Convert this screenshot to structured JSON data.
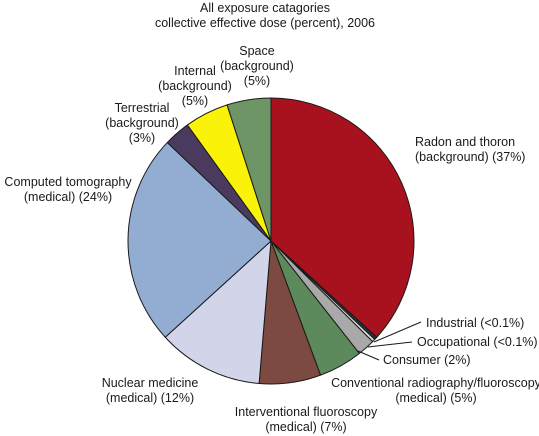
{
  "chart_data": {
    "type": "pie",
    "title": "All exposure catagories",
    "subtitle": "collective effective dose (percent), 2006",
    "unit": "%",
    "slices": [
      {
        "lines": [
          "Radon and thoron",
          "(background) (37%)"
        ],
        "value": 37,
        "color": "#a8121f"
      },
      {
        "lines": [
          "Industrial (<0.1%)"
        ],
        "value": 0.1,
        "color": "#2e2e3a"
      },
      {
        "lines": [
          "Occupational (<0.1%)"
        ],
        "value": 0.1,
        "color": "#e0e0e0"
      },
      {
        "lines": [
          "Consumer (2%)"
        ],
        "value": 2,
        "color": "#a9a9a9"
      },
      {
        "lines": [
          "Conventional radiography/fluoroscopy",
          "(medical) (5%)"
        ],
        "value": 5,
        "color": "#5c8a5c"
      },
      {
        "lines": [
          "Interventional fluoroscopy",
          "(medical) (7%)"
        ],
        "value": 7,
        "color": "#7d4a42"
      },
      {
        "lines": [
          "Nuclear medicine",
          "(medical) (12%)"
        ],
        "value": 12,
        "color": "#d2d4ea"
      },
      {
        "lines": [
          "Computed tomography",
          "(medical) (24%)"
        ],
        "value": 24,
        "color": "#93add2"
      },
      {
        "lines": [
          "Terrestrial",
          "(background)",
          "(3%)"
        ],
        "value": 3,
        "color": "#4a3b5e"
      },
      {
        "lines": [
          "Internal",
          "(background)",
          "(5%)"
        ],
        "value": 5,
        "color": "#fbf20a"
      },
      {
        "lines": [
          "Space",
          "(background)",
          "(5%)"
        ],
        "value": 5,
        "color": "#6e9566"
      }
    ]
  }
}
